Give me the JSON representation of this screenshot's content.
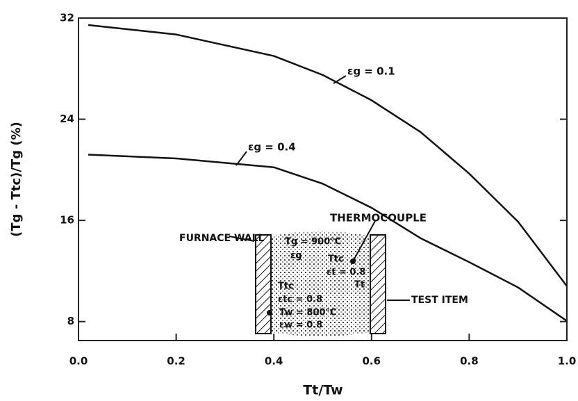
{
  "chart_data": {
    "type": "line",
    "x_label": "Tt/Tw",
    "y_label": "(Tg - Ttc)/Tg (%)",
    "x": [
      0.02,
      0.2,
      0.4,
      0.5,
      0.6,
      0.7,
      0.8,
      0.9,
      1.0
    ],
    "series": [
      {
        "name": "εg = 0.1",
        "color": "#111111",
        "values": [
          31.45,
          30.7,
          29.0,
          27.5,
          25.5,
          23.0,
          19.7,
          15.9,
          10.8
        ]
      },
      {
        "name": "εg = 0.4",
        "color": "#111111",
        "values": [
          21.2,
          20.9,
          20.2,
          18.9,
          17.0,
          14.6,
          12.7,
          10.7,
          8.05
        ]
      }
    ],
    "xlim": [
      0,
      1.0
    ],
    "ylim": [
      6.5,
      32
    ],
    "xticks": [
      {
        "value": 0,
        "label": "0.0"
      },
      0.2,
      0.4,
      0.6,
      0.8,
      {
        "value": 1.0,
        "label": "1.0"
      }
    ],
    "yticks": [
      8,
      16,
      24,
      32
    ],
    "grid": false
  },
  "diagram": {
    "thermocouple": "THERMOCOUPLE",
    "furnace_wall": "FURNACE WALL",
    "test_item": "TEST ITEM",
    "gas_temp": "Tg = 900°C",
    "gas_emissivity": "εg",
    "tc_label": "Ttc",
    "item_emissivity": "εt = 0.8",
    "item_temp": "Tt",
    "tc_temp": "Ttc",
    "tc_emissivity": "εtc = 0.8",
    "wall_temp": "Tw = 800°C",
    "wall_emissivity": "εw = 0.8"
  }
}
